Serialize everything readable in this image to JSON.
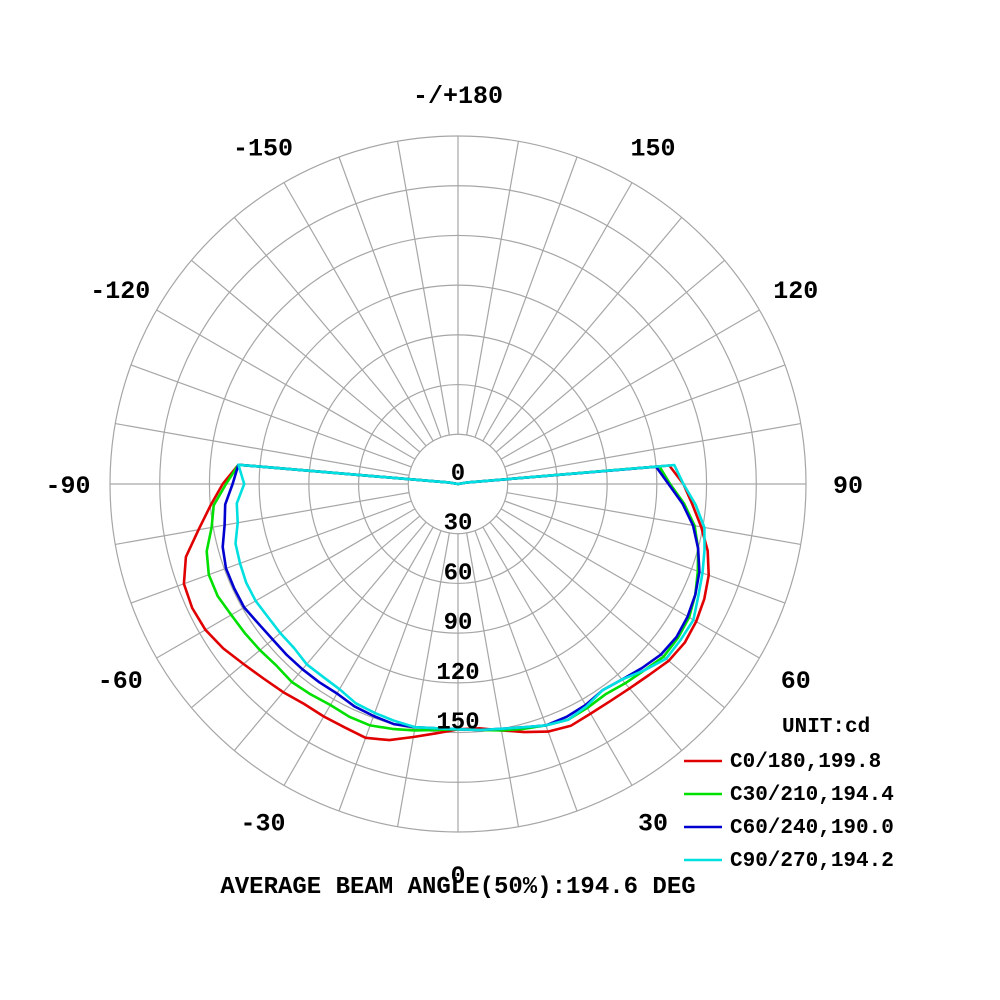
{
  "chart_data": {
    "type": "polar",
    "title": "",
    "radial_range": [
      0,
      210
    ],
    "radial_ticks": [
      "0",
      "30",
      "60",
      "90",
      "120",
      "150"
    ],
    "angle_labels": [
      {
        "text": "0",
        "angle": 0
      },
      {
        "text": "30",
        "angle": 30
      },
      {
        "text": "60",
        "angle": 60
      },
      {
        "text": "90",
        "angle": 90
      },
      {
        "text": "120",
        "angle": 120
      },
      {
        "text": "150",
        "angle": 150
      },
      {
        "text": "-/+180",
        "angle": 180
      },
      {
        "text": "-150",
        "angle": -150
      },
      {
        "text": "-120",
        "angle": -120
      },
      {
        "text": "-90",
        "angle": -90
      },
      {
        "text": "-60",
        "angle": -60
      },
      {
        "text": "-30",
        "angle": -30
      }
    ],
    "angular_grid_step_deg": 10,
    "grid": true,
    "legend_position": "bottom-right",
    "unit": "UNIT:cd",
    "footer": "AVERAGE BEAM ANGLE(50%):194.6 DEG",
    "angles": [
      -100,
      -95,
      -90,
      -85,
      -80,
      -75,
      -70,
      -65,
      -60,
      -55,
      -50,
      -45,
      -40,
      -35,
      -30,
      -25,
      -20,
      -15,
      -10,
      -5,
      0,
      5,
      10,
      15,
      20,
      25,
      30,
      35,
      40,
      45,
      50,
      55,
      60,
      65,
      70,
      75,
      80,
      85,
      90,
      95,
      100
    ],
    "series": [
      {
        "name": "C0/180,199.8",
        "color": "#e00000",
        "values": [
          5,
          133,
          142,
          150,
          159,
          170,
          176,
          177,
          176,
          173,
          169,
          166,
          164,
          162,
          162,
          162,
          163,
          160,
          155,
          151,
          148,
          148,
          151,
          155,
          159,
          161,
          160,
          160,
          161,
          163,
          166,
          167,
          166,
          164,
          161,
          156,
          149,
          142,
          136,
          128,
          5
        ]
      },
      {
        "name": "C30/210,194.4",
        "color": "#00e000",
        "values": [
          5,
          133,
          140,
          148,
          151,
          157,
          160,
          160,
          158,
          157,
          156,
          155,
          156,
          155,
          154,
          155,
          155,
          153,
          151,
          149,
          148,
          149,
          151,
          153,
          155,
          157,
          156,
          155,
          157,
          159,
          162,
          162,
          161,
          158,
          154,
          150,
          145,
          137,
          128,
          122,
          5
        ]
      },
      {
        "name": "C60/240,190.0",
        "color": "#0000d0",
        "values": [
          5,
          133,
          136,
          141,
          143,
          147,
          149,
          149,
          149,
          147,
          146,
          146,
          146,
          146,
          146,
          148,
          149,
          150,
          149,
          148,
          148,
          149,
          150,
          152,
          155,
          155,
          154,
          152,
          154,
          157,
          160,
          161,
          160,
          158,
          155,
          150,
          144,
          136,
          127,
          120,
          5
        ]
      },
      {
        "name": "C90/270,194.2",
        "color": "#00e0e0",
        "values": [
          5,
          133,
          129,
          134,
          135,
          139,
          140,
          141,
          141,
          140,
          140,
          140,
          142,
          142,
          143,
          146,
          147,
          148,
          149,
          148,
          148,
          149,
          150,
          152,
          155,
          157,
          155,
          152,
          154,
          159,
          164,
          164,
          164,
          160,
          157,
          154,
          151,
          144,
          136,
          131,
          5
        ]
      }
    ]
  }
}
